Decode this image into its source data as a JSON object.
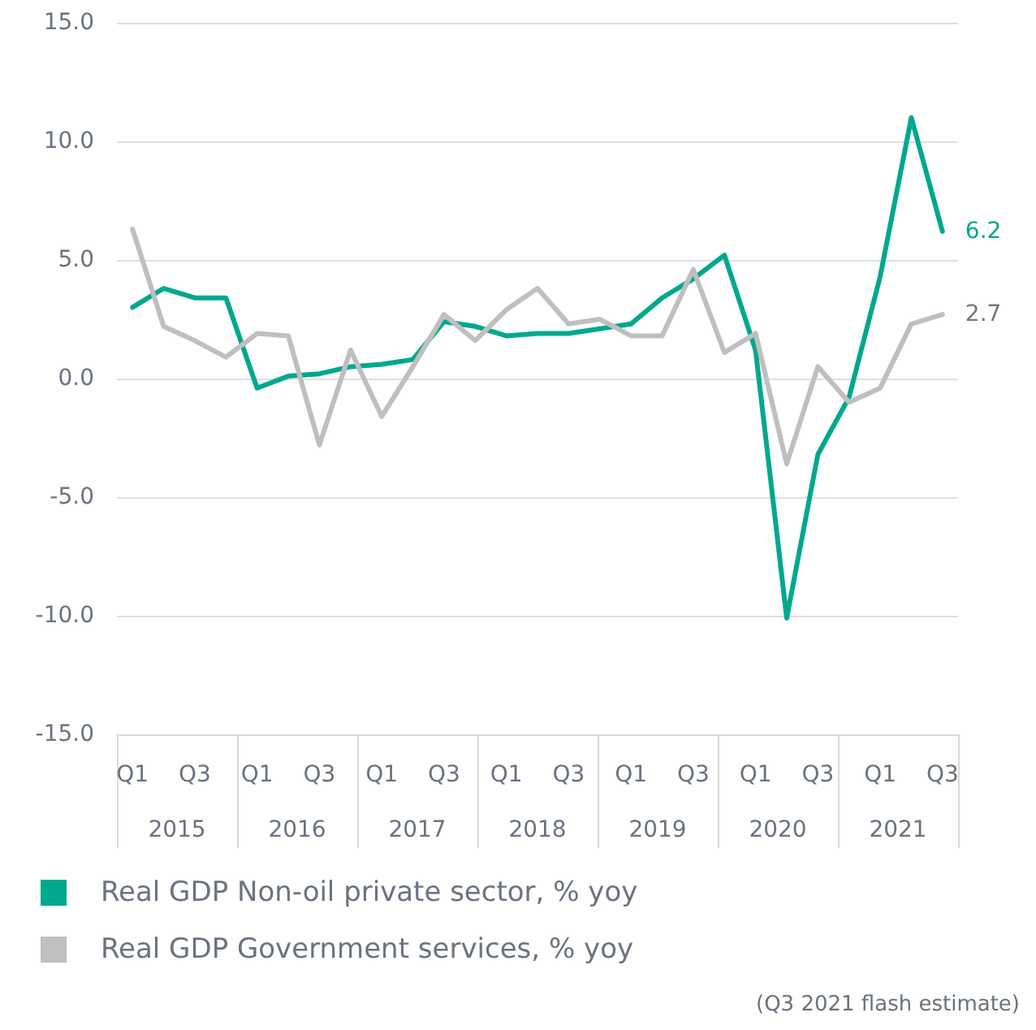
{
  "chart_data": {
    "type": "line",
    "categories": [
      "Q1",
      null,
      "Q3",
      null,
      "Q1",
      null,
      "Q3",
      null,
      "Q1",
      null,
      "Q3",
      null,
      "Q1",
      null,
      "Q3",
      null,
      "Q1",
      null,
      "Q3",
      null,
      "Q1",
      null,
      "Q3",
      null,
      "Q1",
      null,
      "Q3"
    ],
    "series": [
      {
        "name": "Real GDP Non-oil private sector, % yoy",
        "color": "#00a88e",
        "values": [
          3.0,
          3.8,
          3.4,
          3.4,
          -0.4,
          0.1,
          0.2,
          0.5,
          0.6,
          0.8,
          2.4,
          2.2,
          1.8,
          1.9,
          1.9,
          2.1,
          2.3,
          3.4,
          4.2,
          5.2,
          1.2,
          -10.1,
          -3.2,
          -0.8,
          4.3,
          11.0,
          6.2
        ],
        "value_labels": [
          null,
          null,
          null,
          null,
          null,
          null,
          null,
          null,
          null,
          null,
          null,
          null,
          null,
          null,
          null,
          null,
          null,
          null,
          null,
          null,
          null,
          null,
          null,
          null,
          null,
          null,
          "6.2"
        ]
      },
      {
        "name": "Real GDP Government services, % yoy",
        "color": "#bfbfbf",
        "values": [
          6.3,
          2.2,
          1.6,
          0.9,
          1.9,
          1.8,
          -2.8,
          1.2,
          -1.6,
          0.5,
          2.7,
          1.6,
          2.9,
          3.8,
          2.3,
          2.5,
          1.8,
          1.8,
          4.6,
          1.1,
          1.9,
          -3.6,
          0.5,
          -1.0,
          -0.4,
          2.3,
          2.7
        ],
        "value_labels": [
          null,
          null,
          null,
          null,
          null,
          null,
          null,
          null,
          null,
          null,
          null,
          null,
          null,
          null,
          null,
          null,
          null,
          null,
          null,
          null,
          null,
          null,
          null,
          null,
          null,
          null,
          "2.7"
        ]
      }
    ],
    "ylim": [
      -15,
      15
    ],
    "yticks": [
      {
        "value": -15,
        "label": "-15.0"
      },
      {
        "value": -10,
        "label": "-10.0"
      },
      {
        "value": -5,
        "label": "-5.0"
      },
      {
        "value": 0,
        "label": "0.0"
      },
      {
        "value": 5,
        "label": "5.0"
      },
      {
        "value": 10,
        "label": "10.0"
      },
      {
        "value": 15,
        "label": "15.0"
      }
    ],
    "grid": "y",
    "legend": "bottom left",
    "marker": "none",
    "line_style": "solid",
    "annotations": [
      "2015",
      "2016",
      "2017",
      "2018",
      "2019",
      "2020",
      "2021",
      "(Q3 2021 flash estimate)"
    ]
  }
}
